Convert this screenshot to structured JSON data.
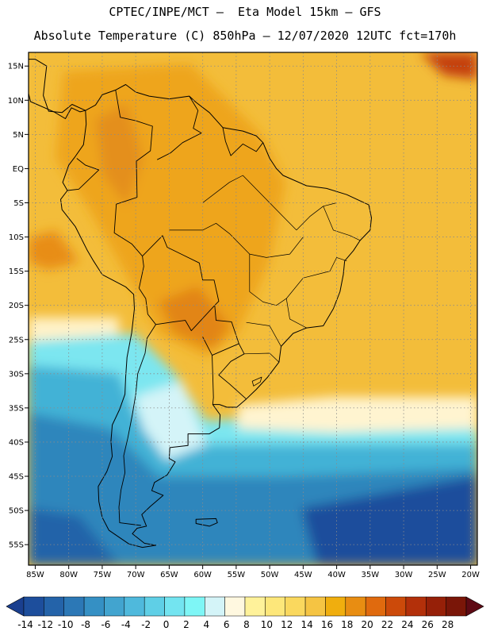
{
  "header": {
    "line1": "CPTEC/INPE/MCT –  Eta Model 15km – GFS",
    "line2": "Absolute Temperature (C) 850hPa – 12/07/2020 12UTC fct=170h"
  },
  "map": {
    "region": "South America",
    "lon_range": [
      -86,
      -19
    ],
    "lat_range": [
      -58,
      17
    ],
    "lat_labels": [
      {
        "lat": 15,
        "label": "15N"
      },
      {
        "lat": 10,
        "label": "10N"
      },
      {
        "lat": 5,
        "label": "5N"
      },
      {
        "lat": 0,
        "label": "EQ"
      },
      {
        "lat": -5,
        "label": "5S"
      },
      {
        "lat": -10,
        "label": "10S"
      },
      {
        "lat": -15,
        "label": "15S"
      },
      {
        "lat": -20,
        "label": "20S"
      },
      {
        "lat": -25,
        "label": "25S"
      },
      {
        "lat": -30,
        "label": "30S"
      },
      {
        "lat": -35,
        "label": "35S"
      },
      {
        "lat": -40,
        "label": "40S"
      },
      {
        "lat": -45,
        "label": "45S"
      },
      {
        "lat": -50,
        "label": "50S"
      },
      {
        "lat": -55,
        "label": "55S"
      }
    ],
    "lon_labels": [
      {
        "lon": -85,
        "label": "85W"
      },
      {
        "lon": -80,
        "label": "80W"
      },
      {
        "lon": -75,
        "label": "75W"
      },
      {
        "lon": -70,
        "label": "70W"
      },
      {
        "lon": -65,
        "label": "65W"
      },
      {
        "lon": -60,
        "label": "60W"
      },
      {
        "lon": -55,
        "label": "55W"
      },
      {
        "lon": -50,
        "label": "50W"
      },
      {
        "lon": -45,
        "label": "45W"
      },
      {
        "lon": -40,
        "label": "40W"
      },
      {
        "lon": -35,
        "label": "35W"
      },
      {
        "lon": -30,
        "label": "30W"
      },
      {
        "lon": -25,
        "label": "25W"
      },
      {
        "lon": -20,
        "label": "20W"
      }
    ]
  },
  "colorbar": {
    "labels": [
      "-14",
      "-12",
      "-10",
      "-8",
      "-6",
      "-4",
      "-2",
      "0",
      "2",
      "4",
      "6",
      "8",
      "10",
      "12",
      "14",
      "16",
      "18",
      "20",
      "22",
      "24",
      "26",
      "28"
    ],
    "colors": [
      "#1a3f8f",
      "#1d4e9c",
      "#2463a9",
      "#2c78b6",
      "#3590c4",
      "#42a4cf",
      "#4fb9dc",
      "#5fcfe6",
      "#73e4f0",
      "#7ef6f6",
      "#d4f4f8",
      "#fff8e0",
      "#fff29a",
      "#fde77a",
      "#fad85e",
      "#f5c443",
      "#f0ae0e",
      "#e88d12",
      "#e06a0e",
      "#cc4a0a",
      "#b3300a",
      "#962008",
      "#7a1608",
      "#5e0a14"
    ]
  }
}
